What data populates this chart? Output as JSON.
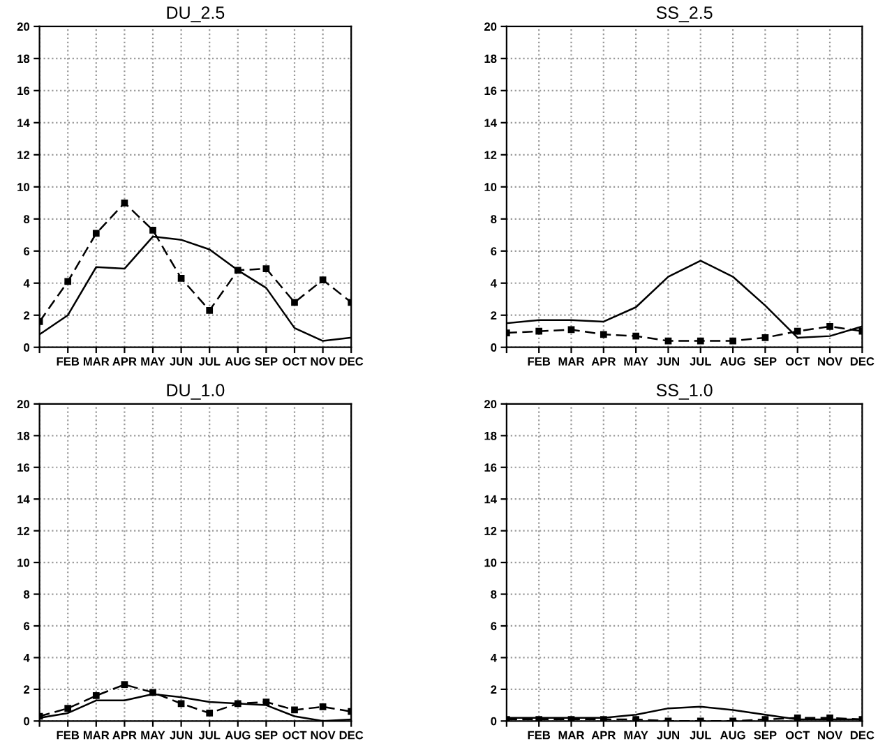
{
  "chart_data": [
    {
      "type": "line",
      "title": "DU_2.5",
      "categories": [
        null,
        "FEB",
        "MAR",
        "APR",
        "MAY",
        "JUN",
        "JUL",
        "AUG",
        "SEP",
        "OCT",
        "NOV",
        "DEC"
      ],
      "ylim": [
        0,
        20
      ],
      "yticks": [
        0,
        2,
        4,
        6,
        8,
        10,
        12,
        14,
        16,
        18,
        20
      ],
      "grid": true,
      "legend": false,
      "series": [
        {
          "color": "#000000",
          "line_style": "solid",
          "marker": "none",
          "values": [
            0.8,
            2.0,
            5.0,
            4.9,
            6.9,
            6.7,
            6.1,
            4.8,
            3.7,
            1.2,
            0.4,
            0.6
          ]
        },
        {
          "color": "#000000",
          "line_style": "dashed",
          "marker": "square",
          "values": [
            1.6,
            4.1,
            7.1,
            9.0,
            7.3,
            4.3,
            2.3,
            4.8,
            4.9,
            2.8,
            4.2,
            2.8
          ]
        }
      ]
    },
    {
      "type": "line",
      "title": "SS_2.5",
      "categories": [
        null,
        "FEB",
        "MAR",
        "APR",
        "MAY",
        "JUN",
        "JUL",
        "AUG",
        "SEP",
        "OCT",
        "NOV",
        "DEC"
      ],
      "ylim": [
        0,
        20
      ],
      "yticks": [
        0,
        2,
        4,
        6,
        8,
        10,
        12,
        14,
        16,
        18,
        20
      ],
      "grid": true,
      "legend": false,
      "series": [
        {
          "color": "#000000",
          "line_style": "solid",
          "marker": "none",
          "values": [
            1.5,
            1.7,
            1.7,
            1.6,
            2.5,
            4.4,
            5.4,
            4.4,
            2.6,
            0.6,
            0.7,
            1.3
          ]
        },
        {
          "color": "#000000",
          "line_style": "dashed",
          "marker": "square",
          "values": [
            0.9,
            1.0,
            1.1,
            0.8,
            0.7,
            0.4,
            0.4,
            0.4,
            0.6,
            1.0,
            1.3,
            1.0
          ]
        }
      ]
    },
    {
      "type": "line",
      "title": "DU_1.0",
      "categories": [
        null,
        "FEB",
        "MAR",
        "APR",
        "MAY",
        "JUN",
        "JUL",
        "AUG",
        "SEP",
        "OCT",
        "NOV",
        "DEC"
      ],
      "ylim": [
        0,
        20
      ],
      "yticks": [
        0,
        2,
        4,
        6,
        8,
        10,
        12,
        14,
        16,
        18,
        20
      ],
      "grid": true,
      "legend": false,
      "series": [
        {
          "color": "#000000",
          "line_style": "solid",
          "marker": "none",
          "values": [
            0.2,
            0.5,
            1.3,
            1.3,
            1.7,
            1.5,
            1.2,
            1.1,
            1.0,
            0.3,
            0.0,
            0.1
          ]
        },
        {
          "color": "#000000",
          "line_style": "dashed",
          "marker": "square",
          "values": [
            0.3,
            0.8,
            1.6,
            2.3,
            1.8,
            1.1,
            0.5,
            1.1,
            1.2,
            0.7,
            0.9,
            0.6
          ]
        }
      ]
    },
    {
      "type": "line",
      "title": "SS_1.0",
      "categories": [
        null,
        "FEB",
        "MAR",
        "APR",
        "MAY",
        "JUN",
        "JUL",
        "AUG",
        "SEP",
        "OCT",
        "NOV",
        "DEC"
      ],
      "ylim": [
        0,
        20
      ],
      "yticks": [
        0,
        2,
        4,
        6,
        8,
        10,
        12,
        14,
        16,
        18,
        20
      ],
      "grid": true,
      "legend": false,
      "series": [
        {
          "color": "#000000",
          "line_style": "solid",
          "marker": "none",
          "values": [
            0.2,
            0.2,
            0.2,
            0.2,
            0.4,
            0.8,
            0.9,
            0.7,
            0.4,
            0.1,
            0.1,
            0.1
          ]
        },
        {
          "color": "#000000",
          "line_style": "dashed",
          "marker": "square",
          "values": [
            0.1,
            0.1,
            0.1,
            0.1,
            0.1,
            0.0,
            0.0,
            0.0,
            0.1,
            0.2,
            0.2,
            0.1
          ]
        }
      ]
    }
  ]
}
